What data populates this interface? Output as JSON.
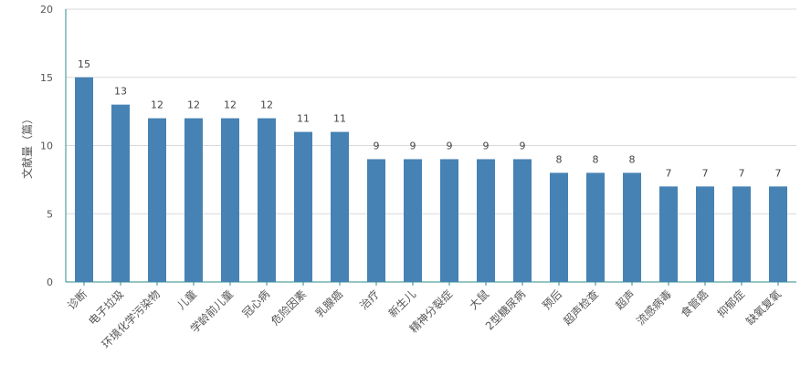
{
  "chart_data": {
    "type": "bar",
    "title": "",
    "xlabel": "",
    "ylabel": "文献量（篇）",
    "ylim": [
      0,
      20
    ],
    "yticks": [
      0,
      5,
      10,
      15,
      20
    ],
    "grid": true,
    "bar_color": "#4682b4",
    "axis_color": "#2e8b8b",
    "grid_color": "#d9d9d9",
    "categories": [
      "诊断",
      "电子垃圾",
      "环境化学污染物",
      "儿童",
      "学龄前儿童",
      "冠心病",
      "危险因素",
      "乳腺癌",
      "治疗",
      "新生儿",
      "精神分裂症",
      "大鼠",
      "2型糖尿病",
      "预后",
      "超声检查",
      "超声",
      "流感病毒",
      "食管癌",
      "抑郁症",
      "缺氧复氧"
    ],
    "values": [
      15,
      13,
      12,
      12,
      12,
      12,
      11,
      11,
      9,
      9,
      9,
      9,
      9,
      8,
      8,
      8,
      7,
      7,
      7,
      7
    ]
  }
}
